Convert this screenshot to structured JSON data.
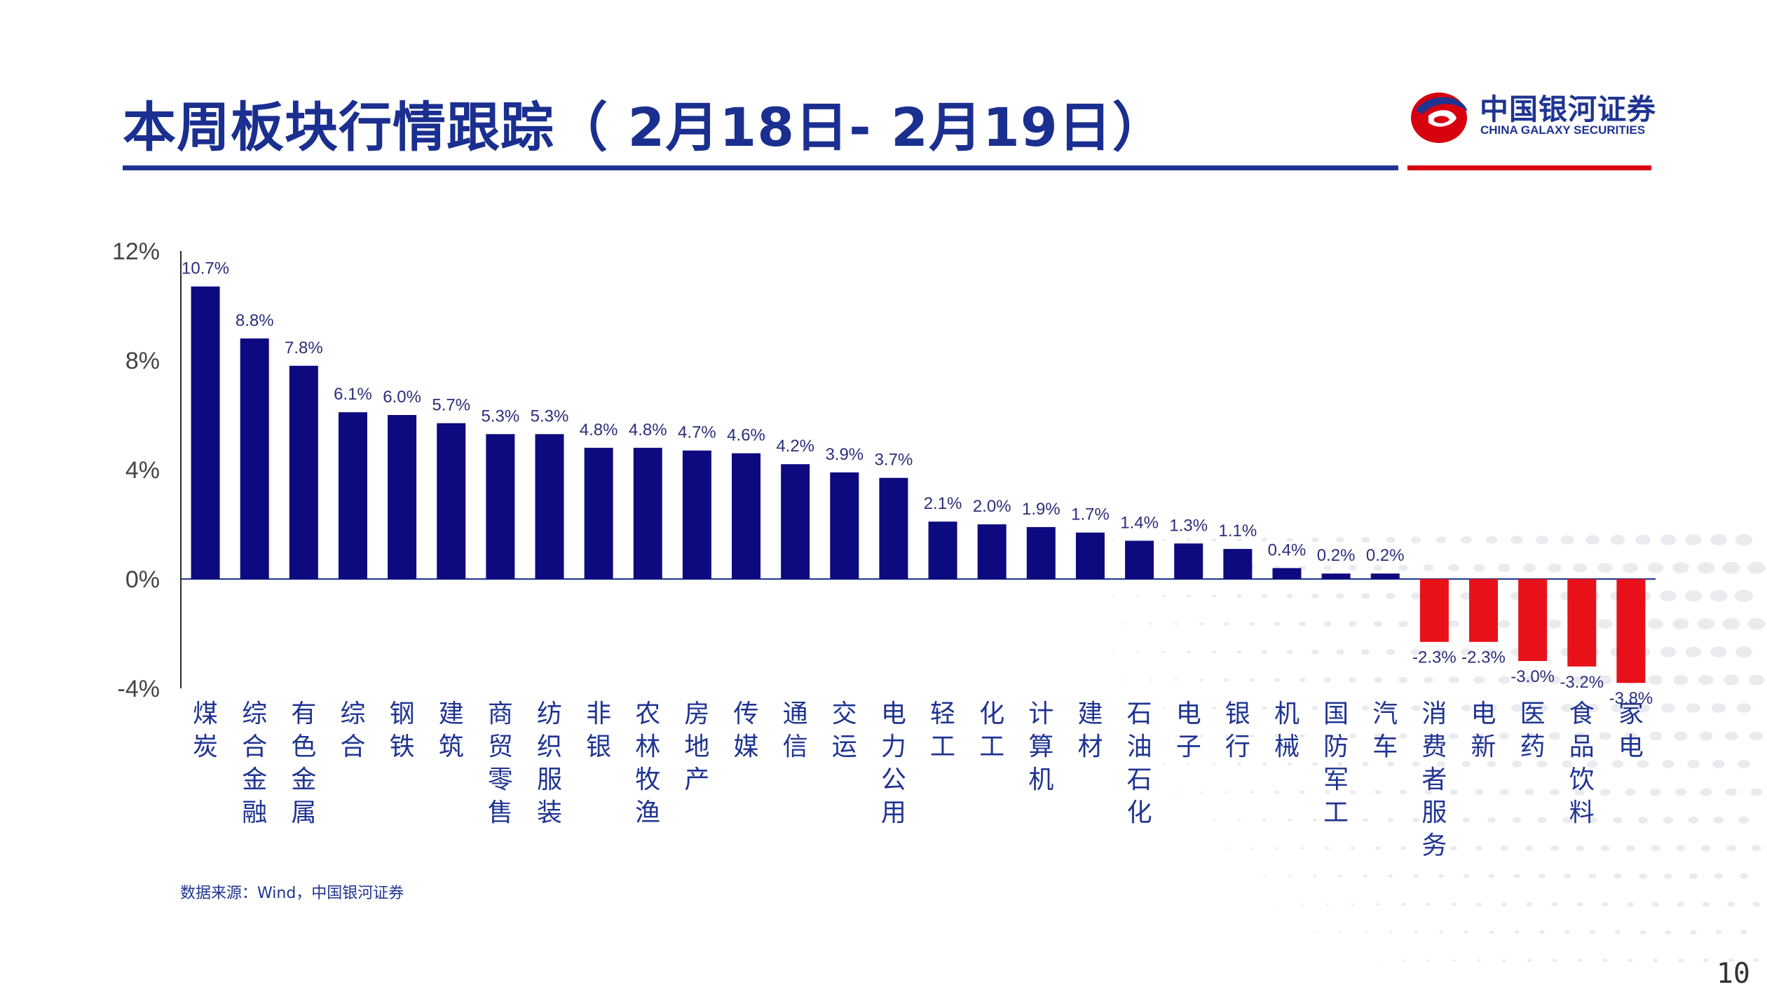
{
  "slide": {
    "title": "本周板块行情跟踪（ 2月18日- 2月19日）",
    "source_note": "数据来源：Wind，中国银河证券",
    "page_number": "10"
  },
  "logo": {
    "name_cn": "中国银河证券",
    "name_en": "CHINA GALAXY SECURITIES"
  },
  "colors": {
    "title_blue": "#1a2f8f",
    "positive_bar": "#0d0a7f",
    "negative_bar": "#e8111a",
    "accent_red": "#d7000f"
  },
  "chart_data": {
    "type": "bar",
    "title": "",
    "xlabel": "",
    "ylabel": "",
    "ylim": [
      -4,
      12
    ],
    "yticks": [
      "12%",
      "8%",
      "4%",
      "0%",
      "-4%"
    ],
    "ytick_values": [
      12,
      8,
      4,
      0,
      -4
    ],
    "grid": false,
    "categories": [
      "煤炭",
      "综合金融",
      "有色金属",
      "综合",
      "钢铁",
      "建筑",
      "商贸零售",
      "纺织服装",
      "非银",
      "农林牧渔",
      "房地产",
      "传媒",
      "通信",
      "交运",
      "电力公用",
      "轻工",
      "化工",
      "计算机",
      "建材",
      "石油石化",
      "电子",
      "银行",
      "机械",
      "国防军工",
      "汽车",
      "消费者服务",
      "电新",
      "医药",
      "食品饮料",
      "家电"
    ],
    "values": [
      10.7,
      8.8,
      7.8,
      6.1,
      6.0,
      5.7,
      5.3,
      5.3,
      4.8,
      4.8,
      4.7,
      4.6,
      4.2,
      3.9,
      3.7,
      2.1,
      2.0,
      1.9,
      1.7,
      1.4,
      1.3,
      1.1,
      0.4,
      0.2,
      0.2,
      -2.3,
      -2.3,
      -3.0,
      -3.2,
      -3.8
    ],
    "labels": [
      "10.7%",
      "8.8%",
      "7.8%",
      "6.1%",
      "6.0%",
      "5.7%",
      "5.3%",
      "5.3%",
      "4.8%",
      "4.8%",
      "4.7%",
      "4.6%",
      "4.2%",
      "3.9%",
      "3.7%",
      "2.1%",
      "2.0%",
      "1.9%",
      "1.7%",
      "1.4%",
      "1.3%",
      "1.1%",
      "0.4%",
      "0.2%",
      "0.2%",
      "-2.3%",
      "-2.3%",
      "-3.0%",
      "-3.2%",
      "-3.8%"
    ]
  }
}
